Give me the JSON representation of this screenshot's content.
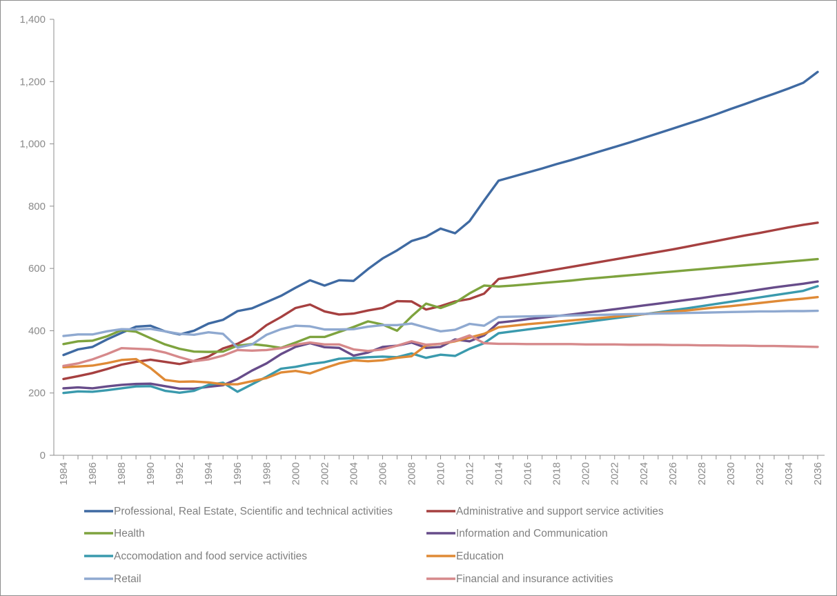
{
  "chart_data": {
    "type": "line",
    "title": "",
    "xlabel": "",
    "ylabel": "",
    "ylim": [
      0,
      1400
    ],
    "y_ticks": [
      "0",
      "200",
      "400",
      "600",
      "800",
      "1,000",
      "1,200",
      "1,400"
    ],
    "x": [
      1984,
      1985,
      1986,
      1987,
      1988,
      1989,
      1990,
      1991,
      1992,
      1993,
      1994,
      1995,
      1996,
      1997,
      1998,
      1999,
      2000,
      2001,
      2002,
      2003,
      2004,
      2005,
      2006,
      2007,
      2008,
      2009,
      2010,
      2011,
      2012,
      2013,
      2014,
      2015,
      2016,
      2017,
      2018,
      2019,
      2020,
      2021,
      2022,
      2023,
      2024,
      2025,
      2026,
      2027,
      2028,
      2029,
      2030,
      2031,
      2032,
      2033,
      2034,
      2035,
      2036
    ],
    "x_ticks": [
      "1984",
      "1986",
      "1988",
      "1990",
      "1992",
      "1994",
      "1996",
      "1998",
      "2000",
      "2002",
      "2004",
      "2006",
      "2008",
      "2010",
      "2012",
      "2014",
      "2016",
      "2018",
      "2020",
      "2022",
      "2024",
      "2026",
      "2028",
      "2030",
      "2032",
      "2034",
      "2036"
    ],
    "grid": false,
    "legend_position": "bottom",
    "series": [
      {
        "name": "Professional, Real Estate, Scientific and technical activities",
        "color": "#3f6aa2",
        "values": [
          322,
          340,
          348,
          372,
          393,
          413,
          416,
          398,
          388,
          400,
          423,
          435,
          463,
          472,
          492,
          512,
          538,
          562,
          545,
          562,
          560,
          598,
          632,
          658,
          688,
          702,
          728,
          713,
          752,
          818,
          882,
          895,
          908,
          921,
          935,
          948,
          962,
          976,
          990,
          1004,
          1019,
          1034,
          1049,
          1064,
          1079,
          1095,
          1112,
          1128,
          1145,
          1161,
          1178,
          1196,
          1231
        ]
      },
      {
        "name": "Administrative and support service activities",
        "color": "#a64040",
        "values": [
          245,
          254,
          264,
          277,
          291,
          300,
          307,
          300,
          293,
          303,
          317,
          343,
          358,
          382,
          418,
          444,
          473,
          484,
          462,
          452,
          455,
          465,
          473,
          495,
          494,
          468,
          479,
          494,
          502,
          519,
          566,
          573,
          581,
          589,
          597,
          605,
          613,
          621,
          629,
          637,
          645,
          653,
          661,
          670,
          679,
          688,
          697,
          706,
          714,
          723,
          732,
          740,
          747
        ]
      },
      {
        "name": "Health",
        "color": "#7ea33e",
        "values": [
          357,
          366,
          368,
          382,
          402,
          397,
          376,
          356,
          342,
          333,
          332,
          333,
          352,
          357,
          352,
          345,
          362,
          380,
          380,
          396,
          412,
          430,
          420,
          400,
          446,
          487,
          473,
          490,
          520,
          545,
          542,
          545,
          549,
          553,
          557,
          561,
          566,
          570,
          574,
          578,
          582,
          586,
          590,
          594,
          598,
          602,
          606,
          610,
          614,
          618,
          622,
          626,
          630
        ]
      },
      {
        "name": "Information and Communication",
        "color": "#674c8a",
        "values": [
          215,
          218,
          215,
          221,
          226,
          229,
          230,
          222,
          214,
          214,
          220,
          225,
          245,
          272,
          295,
          325,
          348,
          360,
          347,
          345,
          320,
          330,
          348,
          352,
          362,
          345,
          348,
          372,
          366,
          385,
          426,
          431,
          437,
          442,
          447,
          452,
          458,
          463,
          469,
          475,
          481,
          487,
          493,
          499,
          505,
          512,
          518,
          525,
          532,
          539,
          545,
          551,
          558
        ]
      },
      {
        "name": "Accomodation and food service activities",
        "color": "#3a9aad",
        "values": [
          200,
          205,
          204,
          209,
          215,
          221,
          222,
          207,
          201,
          207,
          226,
          233,
          204,
          228,
          252,
          278,
          284,
          293,
          299,
          310,
          312,
          315,
          317,
          315,
          327,
          313,
          323,
          319,
          342,
          360,
          392,
          398,
          404,
          410,
          416,
          422,
          428,
          434,
          440,
          446,
          453,
          459,
          466,
          472,
          479,
          486,
          493,
          500,
          507,
          514,
          521,
          528,
          543
        ]
      },
      {
        "name": "Education",
        "color": "#df8a36",
        "values": [
          283,
          285,
          288,
          296,
          306,
          309,
          280,
          242,
          236,
          237,
          234,
          228,
          228,
          238,
          248,
          266,
          271,
          263,
          280,
          295,
          305,
          302,
          305,
          313,
          318,
          353,
          358,
          366,
          378,
          390,
          411,
          416,
          421,
          425,
          429,
          433,
          437,
          441,
          445,
          449,
          453,
          457,
          461,
          465,
          470,
          475,
          479,
          484,
          489,
          494,
          499,
          503,
          508
        ]
      },
      {
        "name": "Retail",
        "color": "#8fa9d0",
        "values": [
          383,
          388,
          388,
          398,
          405,
          404,
          406,
          398,
          390,
          387,
          395,
          390,
          346,
          356,
          387,
          405,
          416,
          414,
          404,
          404,
          405,
          413,
          418,
          418,
          423,
          410,
          398,
          403,
          422,
          416,
          444,
          445,
          446,
          447,
          448,
          449,
          450,
          451,
          452,
          453,
          454,
          455,
          456,
          457,
          458,
          459,
          460,
          461,
          462,
          462,
          463,
          463,
          464
        ]
      },
      {
        "name": "Financial and insurance activities",
        "color": "#d6898b",
        "values": [
          287,
          295,
          308,
          325,
          344,
          342,
          340,
          330,
          315,
          302,
          308,
          320,
          338,
          336,
          338,
          344,
          355,
          362,
          356,
          356,
          340,
          335,
          340,
          352,
          366,
          355,
          358,
          368,
          385,
          360,
          358,
          358,
          357,
          357,
          357,
          357,
          356,
          356,
          356,
          355,
          355,
          355,
          354,
          354,
          353,
          353,
          352,
          352,
          351,
          351,
          350,
          349,
          348
        ]
      }
    ]
  }
}
